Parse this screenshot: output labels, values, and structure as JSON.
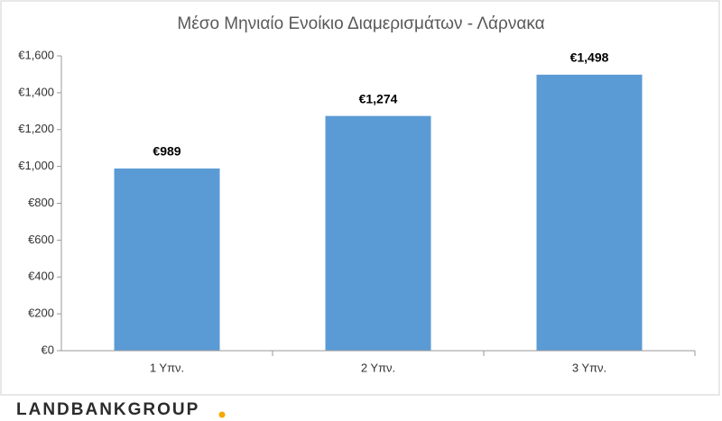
{
  "chart_data": {
    "type": "bar",
    "title": "Μέσο Μηνιαίο Ενοίκιο Διαμερισμάτων - Λάρνακα",
    "categories": [
      "1 Υπν.",
      "2 Υπν.",
      "3 Υπν."
    ],
    "values": [
      989,
      1274,
      1498
    ],
    "value_labels": [
      "€989",
      "€1,274",
      "€1,498"
    ],
    "color": "#5b9bd5",
    "ylim": [
      0,
      1600
    ],
    "yticks": [
      {
        "value": 0,
        "label": "€0"
      },
      {
        "value": 200,
        "label": "€200"
      },
      {
        "value": 400,
        "label": "€400"
      },
      {
        "value": 600,
        "label": "€600"
      },
      {
        "value": 800,
        "label": "€800"
      },
      {
        "value": 1000,
        "label": "€1,000"
      },
      {
        "value": 1200,
        "label": "€1,200"
      },
      {
        "value": 1400,
        "label": "€1,400"
      },
      {
        "value": 1600,
        "label": "€1,600"
      }
    ],
    "grid": false
  },
  "logo": {
    "text": "LANDBANKGROUP"
  }
}
